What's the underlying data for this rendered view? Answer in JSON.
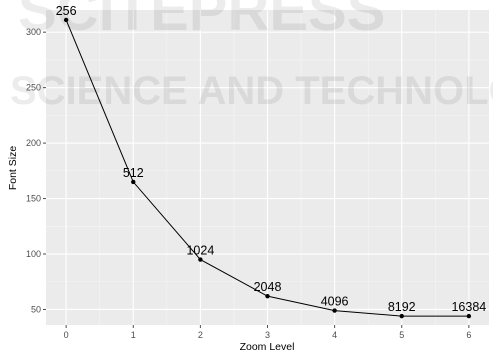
{
  "watermark": {
    "top_text": "SCITEPRESS",
    "middle_text": "SCIENCE AND TECHNOLOGY PUBLICATIONS"
  },
  "chart_data": {
    "type": "line",
    "title": "",
    "xlabel": "Zoom Level",
    "ylabel": "Font Size",
    "xlim": [
      -0.3,
      6.3
    ],
    "ylim": [
      36,
      320
    ],
    "x_ticks": [
      0,
      1,
      2,
      3,
      4,
      5,
      6
    ],
    "y_ticks": [
      50,
      100,
      150,
      200,
      250,
      300
    ],
    "grid": true,
    "legend": "none",
    "series": [
      {
        "x": [
          0,
          1,
          2,
          3,
          4,
          5,
          6
        ],
        "y": [
          311,
          165,
          95,
          62,
          49,
          44,
          44
        ],
        "point_labels": [
          "256",
          "512",
          "1024",
          "2048",
          "4096",
          "8192",
          "16384"
        ],
        "color": "#000000"
      }
    ],
    "panel_color": "#ebebeb",
    "grid_color": "#ffffff"
  }
}
